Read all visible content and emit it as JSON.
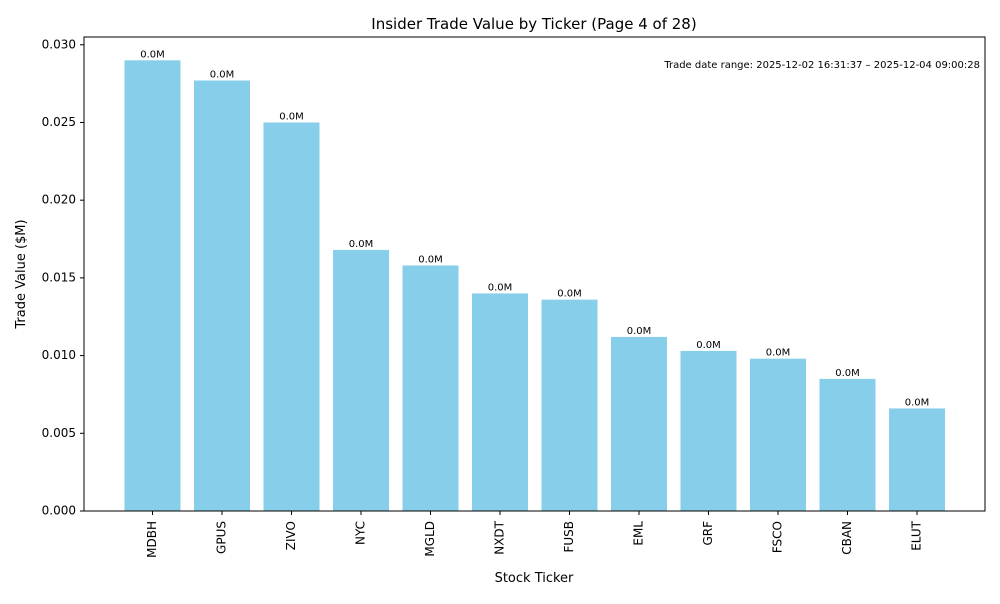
{
  "chart_data": {
    "type": "bar",
    "title": "Insider Trade Value by Ticker (Page 4 of 28)",
    "xlabel": "Stock Ticker",
    "ylabel": "Trade Value ($M)",
    "ylim": [
      0,
      0.0305
    ],
    "yticks": [
      0,
      0.005,
      0.01,
      0.015,
      0.02,
      0.025,
      0.03
    ],
    "ytick_labels": [
      "0.000",
      "0.005",
      "0.010",
      "0.015",
      "0.020",
      "0.025",
      "0.030"
    ],
    "categories": [
      "MDBH",
      "GPUS",
      "ZIVO",
      "NYC",
      "MGLD",
      "NXDT",
      "FUSB",
      "EML",
      "GRF",
      "FSCO",
      "CBAN",
      "ELUT"
    ],
    "values": [
      0.029,
      0.0277,
      0.025,
      0.0168,
      0.0158,
      0.014,
      0.0136,
      0.0112,
      0.0103,
      0.0098,
      0.0085,
      0.0066
    ],
    "data_labels": [
      "0.0M",
      "0.0M",
      "0.0M",
      "0.0M",
      "0.0M",
      "0.0M",
      "0.0M",
      "0.0M",
      "0.0M",
      "0.0M",
      "0.0M",
      "0.0M"
    ],
    "annotation": "Trade date range: 2025-12-02 16:31:37 – 2025-12-04 09:00:28",
    "bar_color": "#87CEEB",
    "grid": false
  }
}
